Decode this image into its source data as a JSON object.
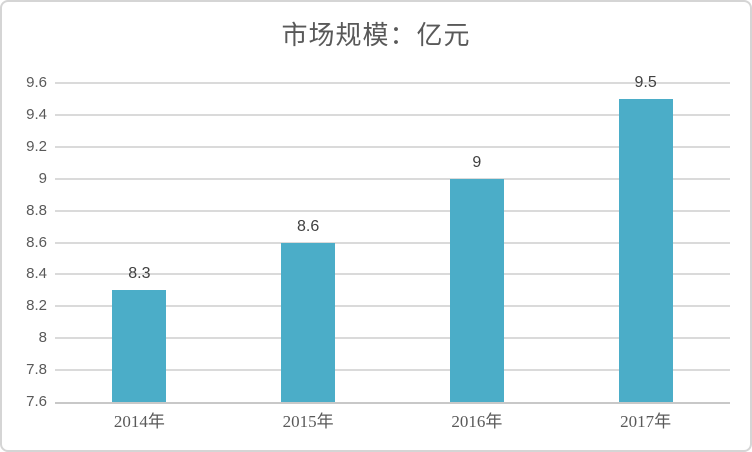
{
  "frame": {
    "background_color": "#ffffff",
    "border_color": "#d5d5d5"
  },
  "chart_data": {
    "type": "bar",
    "title": "市场规模：亿元",
    "categories": [
      "2014年",
      "2015年",
      "2016年",
      "2017年"
    ],
    "values": [
      8.3,
      8.6,
      9,
      9.5
    ],
    "value_labels": [
      "8.3",
      "8.6",
      "9",
      "9.5"
    ],
    "xlabel": "",
    "ylabel": "",
    "ylim": [
      7.6,
      9.6
    ],
    "yticks": [
      7.6,
      7.8,
      8,
      8.2,
      8.4,
      8.6,
      8.8,
      9,
      9.2,
      9.4,
      9.6
    ],
    "ytick_labels": [
      "7.6",
      "7.8",
      "8",
      "8.2",
      "8.4",
      "8.6",
      "8.8",
      "9",
      "9.2",
      "9.4",
      "9.6"
    ],
    "grid": true,
    "legend": false,
    "bar_color": "#4badc8",
    "gridline_color": "#dadada",
    "axis_line_color": "#c8c8c8",
    "title_color": "#595959",
    "tick_label_color": "#595959",
    "value_label_color": "#404040"
  }
}
